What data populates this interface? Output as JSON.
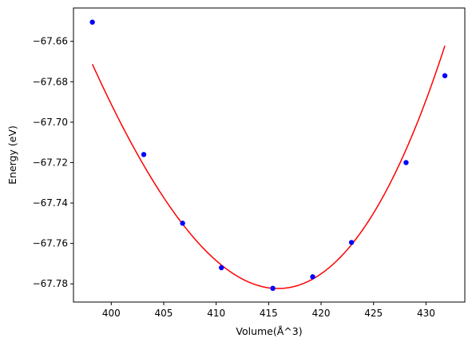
{
  "chart_data": {
    "type": "scatter",
    "title": "",
    "xlabel": "Volume(Å^3)",
    "ylabel": "Energy (eV)",
    "xlim": [
      396.4,
      433.7
    ],
    "ylim": [
      -67.789,
      -67.6435
    ],
    "xticks": [
      400,
      405,
      410,
      415,
      420,
      425,
      430
    ],
    "yticks": [
      -67.78,
      -67.76,
      -67.74,
      -67.72,
      -67.7,
      -67.68,
      -67.66
    ],
    "ytick_labels": [
      "−67.78",
      "−67.76",
      "−67.74",
      "−67.72",
      "−67.70",
      "−67.68",
      "−67.66"
    ],
    "grid": false,
    "legend": "none",
    "series": [
      {
        "kind": "points",
        "color": "#0000ff",
        "x": [
          398.2,
          403.1,
          406.8,
          410.5,
          415.4,
          419.2,
          422.9,
          428.1,
          431.8
        ],
        "y": [
          -67.6505,
          -67.716,
          -67.75,
          -67.772,
          -67.7822,
          -67.7765,
          -67.7595,
          -67.72,
          -67.677
        ]
      },
      {
        "kind": "fit-curve",
        "color": "#ff0000",
        "x_range": [
          398.2,
          431.8
        ],
        "min_x": 415.9,
        "min_y": -67.7823,
        "quadratic_coeff": 0.000418,
        "cubic_coeff": 3.6e-06
      }
    ]
  }
}
